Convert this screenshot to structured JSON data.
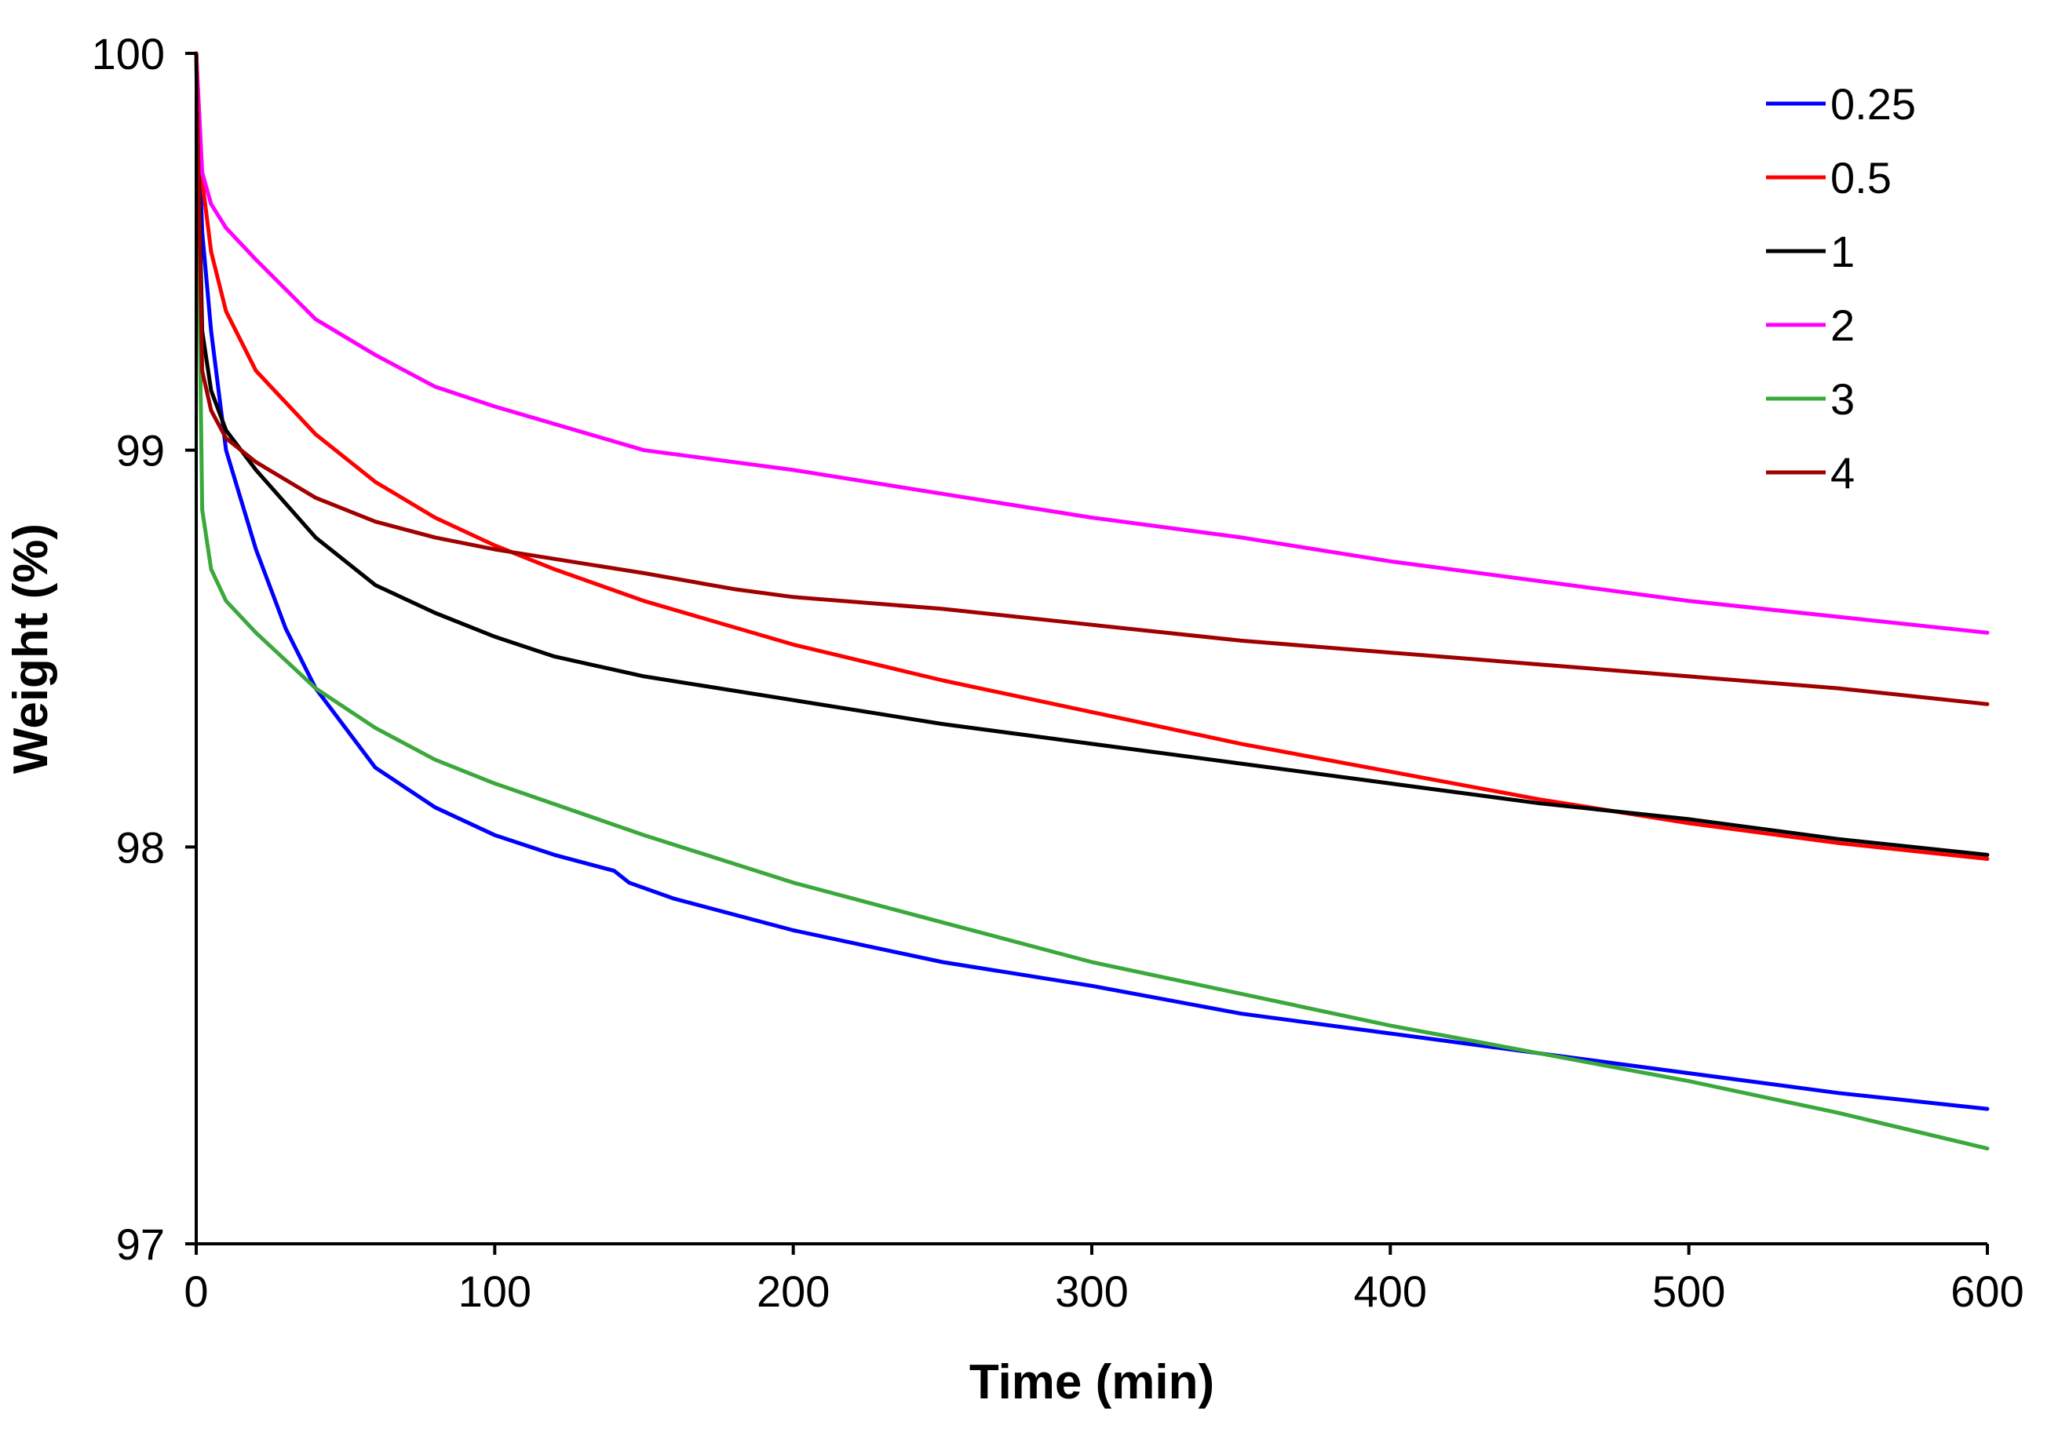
{
  "chart_data": {
    "type": "line",
    "title": "",
    "xlabel": "Time (min)",
    "ylabel": "Weight (%)",
    "xlim": [
      0,
      600
    ],
    "ylim": [
      97,
      100
    ],
    "xticks": [
      "0",
      "100",
      "200",
      "300",
      "400",
      "500",
      "600"
    ],
    "yticks": [
      "97",
      "98",
      "99",
      "100"
    ],
    "grid": false,
    "legend_position": "top-right",
    "series": [
      {
        "name": "0.25",
        "color": "#0000ff",
        "x": [
          0,
          2,
          5,
          10,
          20,
          30,
          40,
          60,
          80,
          100,
          120,
          140,
          145,
          160,
          200,
          250,
          300,
          350,
          400,
          450,
          500,
          550,
          600
        ],
        "y": [
          100,
          99.55,
          99.3,
          99.0,
          98.75,
          98.55,
          98.4,
          98.2,
          98.1,
          98.03,
          97.98,
          97.94,
          97.91,
          97.87,
          97.79,
          97.71,
          97.65,
          97.58,
          97.53,
          97.48,
          97.43,
          97.38,
          97.34
        ]
      },
      {
        "name": "0.5",
        "color": "#ff0000",
        "x": [
          0,
          2,
          5,
          10,
          20,
          40,
          60,
          80,
          100,
          120,
          150,
          200,
          250,
          300,
          350,
          400,
          450,
          500,
          550,
          600
        ],
        "y": [
          100,
          99.68,
          99.5,
          99.35,
          99.2,
          99.04,
          98.92,
          98.83,
          98.76,
          98.7,
          98.62,
          98.51,
          98.42,
          98.34,
          98.26,
          98.19,
          98.12,
          98.06,
          98.01,
          97.97
        ]
      },
      {
        "name": "1",
        "color": "#000000",
        "x": [
          0,
          2,
          5,
          10,
          20,
          40,
          60,
          80,
          100,
          120,
          150,
          200,
          250,
          300,
          350,
          400,
          450,
          500,
          550,
          600
        ],
        "y": [
          100,
          99.3,
          99.15,
          99.05,
          98.95,
          98.78,
          98.66,
          98.59,
          98.53,
          98.48,
          98.43,
          98.37,
          98.31,
          98.26,
          98.21,
          98.16,
          98.11,
          98.07,
          98.02,
          97.98
        ]
      },
      {
        "name": "2",
        "color": "#ff00ff",
        "x": [
          0,
          2,
          5,
          10,
          20,
          40,
          60,
          80,
          100,
          150,
          200,
          250,
          300,
          350,
          400,
          450,
          500,
          550,
          600
        ],
        "y": [
          100,
          99.7,
          99.62,
          99.56,
          99.48,
          99.33,
          99.24,
          99.16,
          99.11,
          99.0,
          98.95,
          98.89,
          98.83,
          98.78,
          98.72,
          98.67,
          98.62,
          98.58,
          98.54
        ]
      },
      {
        "name": "3",
        "color": "#3aa83a",
        "x": [
          0,
          2,
          5,
          10,
          20,
          40,
          60,
          80,
          100,
          150,
          200,
          250,
          300,
          350,
          400,
          450,
          500,
          550,
          600
        ],
        "y": [
          100,
          98.85,
          98.7,
          98.62,
          98.54,
          98.4,
          98.3,
          98.22,
          98.16,
          98.03,
          97.91,
          97.81,
          97.71,
          97.63,
          97.55,
          97.48,
          97.41,
          97.33,
          97.24
        ]
      },
      {
        "name": "4",
        "color": "#a00000",
        "x": [
          0,
          2,
          5,
          10,
          20,
          40,
          60,
          80,
          100,
          150,
          180,
          200,
          250,
          300,
          350,
          400,
          450,
          500,
          550,
          600
        ],
        "y": [
          100,
          99.2,
          99.1,
          99.03,
          98.97,
          98.88,
          98.82,
          98.78,
          98.75,
          98.69,
          98.65,
          98.63,
          98.6,
          98.56,
          98.52,
          98.49,
          98.46,
          98.43,
          98.4,
          98.36
        ]
      }
    ]
  }
}
